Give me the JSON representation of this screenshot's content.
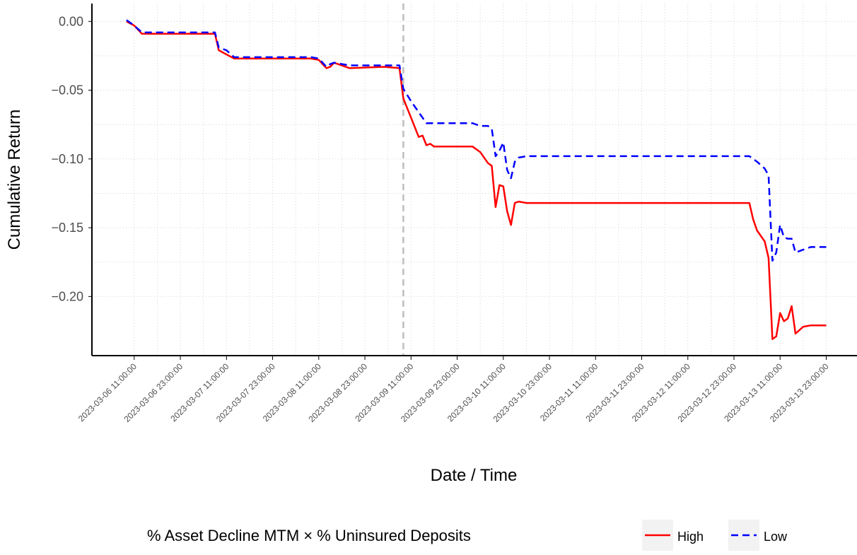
{
  "chart_data": {
    "type": "line",
    "x_label": "Date / Time",
    "y_label": "Cumulative Return",
    "legend_title": "% Asset Decline MTM × % Uninsured Deposits",
    "legend_position": "bottom",
    "grid": true,
    "vline_x": "2023-03-09 09:00:00",
    "xlim": [
      "2023-03-06 00:00:00",
      "2023-03-14 07:00:00"
    ],
    "ylim": [
      -0.243,
      0.013
    ],
    "yticks": [
      {
        "value": 0,
        "label": "0.00"
      },
      {
        "value": -0.05,
        "label": "−0.05"
      },
      {
        "value": -0.1,
        "label": "−0.10"
      },
      {
        "value": -0.15,
        "label": "−0.15"
      },
      {
        "value": -0.2,
        "label": "−0.20"
      }
    ],
    "xticks": [
      "2023-03-06 11:00:00",
      "2023-03-06 23:00:00",
      "2023-03-07 11:00:00",
      "2023-03-07 23:00:00",
      "2023-03-08 11:00:00",
      "2023-03-08 23:00:00",
      "2023-03-09 11:00:00",
      "2023-03-09 23:00:00",
      "2023-03-10 11:00:00",
      "2023-03-10 23:00:00",
      "2023-03-11 11:00:00",
      "2023-03-11 23:00:00",
      "2023-03-12 11:00:00",
      "2023-03-12 23:00:00",
      "2023-03-13 11:00:00",
      "2023-03-13 23:00:00"
    ],
    "x": [
      "2023-03-06 09:00:00",
      "2023-03-06 11:00:00",
      "2023-03-06 13:00:00",
      "2023-03-06 15:00:00",
      "2023-03-07 08:00:00",
      "2023-03-07 09:00:00",
      "2023-03-07 11:00:00",
      "2023-03-07 13:00:00",
      "2023-03-07 15:00:00",
      "2023-03-08 09:00:00",
      "2023-03-08 11:00:00",
      "2023-03-08 13:00:00",
      "2023-03-08 14:00:00",
      "2023-03-08 15:00:00",
      "2023-03-08 17:00:00",
      "2023-03-08 19:00:00",
      "2023-03-09 04:00:00",
      "2023-03-09 08:00:00",
      "2023-03-09 09:00:00",
      "2023-03-09 11:00:00",
      "2023-03-09 13:00:00",
      "2023-03-09 14:00:00",
      "2023-03-09 15:00:00",
      "2023-03-09 16:00:00",
      "2023-03-09 17:00:00",
      "2023-03-09 19:00:00",
      "2023-03-10 03:00:00",
      "2023-03-10 05:00:00",
      "2023-03-10 07:00:00",
      "2023-03-10 08:00:00",
      "2023-03-10 09:00:00",
      "2023-03-10 10:00:00",
      "2023-03-10 11:00:00",
      "2023-03-10 12:00:00",
      "2023-03-10 13:00:00",
      "2023-03-10 14:00:00",
      "2023-03-10 15:00:00",
      "2023-03-10 17:00:00",
      "2023-03-13 03:00:00",
      "2023-03-13 04:00:00",
      "2023-03-13 05:00:00",
      "2023-03-13 07:00:00",
      "2023-03-13 08:00:00",
      "2023-03-13 09:00:00",
      "2023-03-13 10:00:00",
      "2023-03-13 11:00:00",
      "2023-03-13 12:00:00",
      "2023-03-13 13:00:00",
      "2023-03-13 14:00:00",
      "2023-03-13 15:00:00",
      "2023-03-13 17:00:00",
      "2023-03-13 19:00:00",
      "2023-03-13 23:00:00"
    ],
    "series": [
      {
        "name": "High",
        "color": "#ff0000",
        "dash": "solid",
        "values": [
          0.0,
          -0.003,
          -0.009,
          -0.009,
          -0.009,
          -0.021,
          -0.024,
          -0.027,
          -0.027,
          -0.027,
          -0.028,
          -0.034,
          -0.033,
          -0.03,
          -0.032,
          -0.034,
          -0.033,
          -0.034,
          -0.056,
          -0.07,
          -0.084,
          -0.083,
          -0.09,
          -0.089,
          -0.091,
          -0.091,
          -0.091,
          -0.095,
          -0.103,
          -0.105,
          -0.135,
          -0.119,
          -0.12,
          -0.138,
          -0.148,
          -0.132,
          -0.131,
          -0.132,
          -0.132,
          -0.144,
          -0.152,
          -0.16,
          -0.172,
          -0.231,
          -0.229,
          -0.212,
          -0.218,
          -0.216,
          -0.207,
          -0.227,
          -0.222,
          -0.221,
          -0.221
        ]
      },
      {
        "name": "Low",
        "color": "#0000ff",
        "dash": "dashed",
        "values": [
          0.001,
          -0.003,
          -0.008,
          -0.008,
          -0.008,
          -0.019,
          -0.021,
          -0.026,
          -0.026,
          -0.026,
          -0.027,
          -0.033,
          -0.031,
          -0.03,
          -0.031,
          -0.032,
          -0.032,
          -0.032,
          -0.049,
          -0.058,
          -0.066,
          -0.07,
          -0.074,
          -0.074,
          -0.074,
          -0.074,
          -0.074,
          -0.076,
          -0.076,
          -0.078,
          -0.098,
          -0.094,
          -0.088,
          -0.108,
          -0.114,
          -0.102,
          -0.099,
          -0.098,
          -0.098,
          -0.1,
          -0.102,
          -0.107,
          -0.112,
          -0.174,
          -0.168,
          -0.148,
          -0.157,
          -0.158,
          -0.158,
          -0.168,
          -0.166,
          -0.164,
          -0.164
        ]
      }
    ]
  }
}
